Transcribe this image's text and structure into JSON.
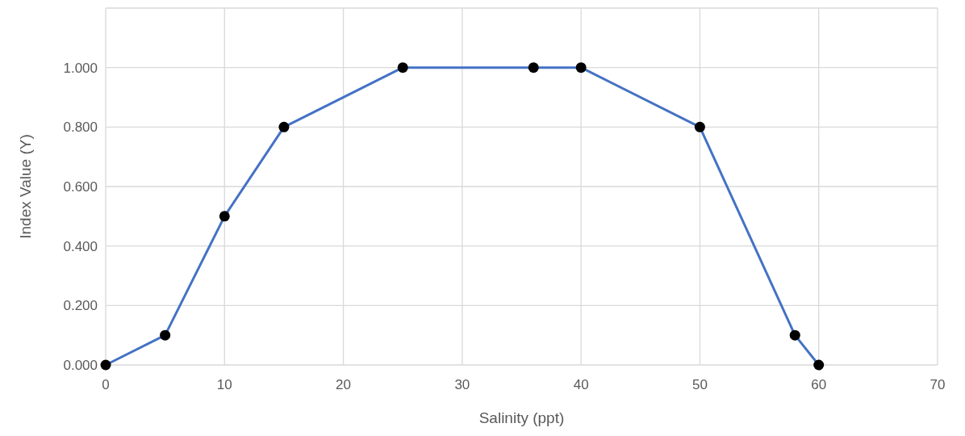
{
  "chart_data": {
    "type": "line",
    "xlabel": "Salinity (ppt)",
    "ylabel": "Index Value (Y)",
    "x": [
      0,
      5,
      10,
      15,
      25,
      36,
      40,
      50,
      58,
      60
    ],
    "series": [
      {
        "color": "#4472c4",
        "values": [
          0,
          0.1,
          0.5,
          0.8,
          1,
          1,
          1,
          0.8,
          0.1,
          0
        ]
      }
    ],
    "xlim": [
      0,
      70
    ],
    "xticks": [
      0,
      10,
      20,
      30,
      40,
      50,
      60,
      70
    ],
    "ylim": [
      0,
      1.2
    ],
    "yticks": [
      {
        "value": 0,
        "label": "0.000"
      },
      {
        "value": 0.2,
        "label": "0.200"
      },
      {
        "value": 0.4,
        "label": "0.400"
      },
      {
        "value": 0.6,
        "label": "0.600"
      },
      {
        "value": 0.8,
        "label": "0.800"
      },
      {
        "value": 1,
        "label": "1.000"
      },
      {
        "value": 1.2,
        "label": null
      }
    ],
    "grid": true,
    "marker": "circle",
    "line_style": "solid"
  }
}
